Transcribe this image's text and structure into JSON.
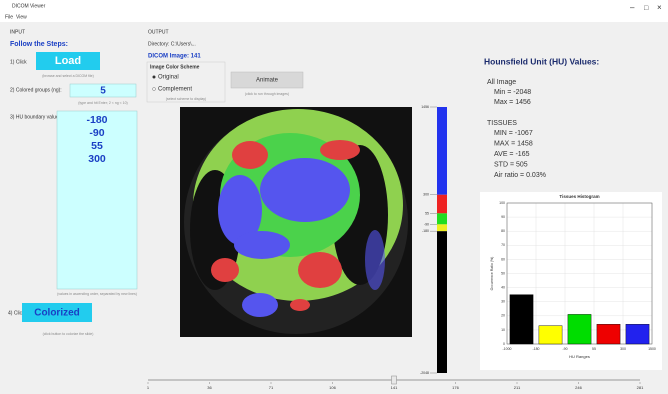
{
  "window": {
    "title": "DICOM Viewer",
    "menu": [
      "File",
      "View"
    ]
  },
  "input": {
    "header": "INPUT",
    "steps_title": "Follow the Steps:",
    "step1": {
      "label": "1) Click",
      "button": "Load",
      "hint": "(browse and select a DICOM file)"
    },
    "step2": {
      "label": "2) Colored groups (ng):",
      "value": "5",
      "hint": "(type and hit Enter; 2 < ng < 10)"
    },
    "step3": {
      "label": "3) HU boundary values:",
      "values": [
        "-180",
        "-90",
        "55",
        "300"
      ],
      "hint": "(values in ascending order, separated by new lines)"
    },
    "step4": {
      "label": "4) Click",
      "button": "Colorized",
      "hint": "(click button to colorize the slide)"
    }
  },
  "output": {
    "header": "OUTPUT",
    "directory": "Directory: C:\\Users\\...",
    "dicom_image": "DICOM Image: 141",
    "scheme_title": "Image Color Scheme",
    "schemes": [
      "Original",
      "Complement"
    ],
    "scheme_hint": "(select scheme to display)",
    "animate_button": "Animate",
    "animate_hint": "(click to run through images)"
  },
  "colorbar": {
    "ticks": [
      1456,
      300,
      55,
      -90,
      -180,
      -2048
    ],
    "colors": [
      "#2233ee",
      "#ee2222",
      "#22dd22",
      "#eeee22",
      "#000000"
    ]
  },
  "slider": {
    "min": 1,
    "max": 281,
    "value": 141,
    "ticks": [
      1,
      36,
      71,
      106,
      141,
      176,
      211,
      246,
      281
    ]
  },
  "hu_values": {
    "title": "Hounsfield Unit (HU) Values:",
    "all_image": "All Image",
    "all_lines": [
      "Min = -2048",
      "Max = 1456"
    ],
    "tissues": "TISSUES",
    "tissue_lines": [
      "MIN = -1067",
      "MAX = 1458",
      "AVE = -165",
      "STD = 505",
      "Air ratio = 0.03%"
    ]
  },
  "chart_data": {
    "type": "histogram",
    "title": "Tissues Histogram",
    "x_label": "HU Ranges",
    "y_label": "Occurrence Ratio (%)",
    "bins": [
      -1000,
      -180,
      -90,
      55,
      300,
      1500
    ],
    "values": [
      35,
      13,
      21,
      14,
      14
    ],
    "colors": [
      "#000000",
      "#ffff00",
      "#00dd00",
      "#ee0000",
      "#2222ee"
    ],
    "ylim": [
      0,
      100
    ],
    "yticks": [
      0,
      10,
      20,
      30,
      40,
      50,
      60,
      70,
      80,
      90,
      100
    ],
    "grid": true
  }
}
